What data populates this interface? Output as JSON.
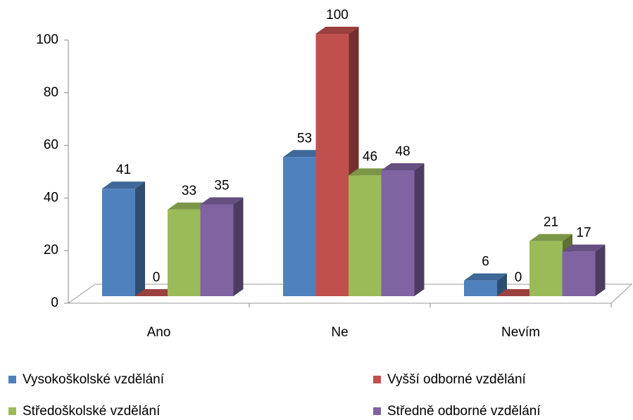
{
  "chart_data": {
    "type": "bar3d",
    "categories": [
      "Ano",
      "Ne",
      "Nevím"
    ],
    "series": [
      {
        "name": "Vysokoškolské vzdělání",
        "color": "#4f81bd",
        "values": [
          41,
          53,
          6
        ]
      },
      {
        "name": "Vyšší odborné vzdělání",
        "color": "#c0504d",
        "values": [
          0,
          100,
          0
        ]
      },
      {
        "name": "Středoškolské vzdělání",
        "color": "#9bbb59",
        "values": [
          33,
          46,
          21
        ]
      },
      {
        "name": "Středně odborné vzdělání",
        "color": "#8064a2",
        "values": [
          35,
          48,
          17
        ]
      }
    ],
    "ylim": [
      0,
      100
    ],
    "yticks": [
      0,
      20,
      40,
      60,
      80,
      100
    ],
    "legend": "bottom"
  }
}
